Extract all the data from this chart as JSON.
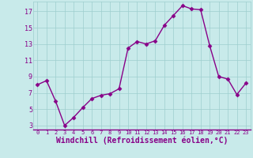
{
  "x": [
    0,
    1,
    2,
    3,
    4,
    5,
    6,
    7,
    8,
    9,
    10,
    11,
    12,
    13,
    14,
    15,
    16,
    17,
    18,
    19,
    20,
    21,
    22,
    23
  ],
  "y": [
    8.0,
    8.5,
    6.0,
    3.0,
    4.0,
    5.2,
    6.3,
    6.7,
    6.9,
    7.5,
    12.5,
    13.3,
    13.0,
    13.4,
    15.3,
    16.5,
    17.7,
    17.3,
    17.2,
    12.8,
    9.0,
    8.7,
    6.8,
    8.2
  ],
  "line_color": "#880088",
  "marker": "D",
  "markersize": 2.5,
  "linewidth": 1.0,
  "bg_color": "#c8eaea",
  "grid_color": "#9ecece",
  "xlabel": "Windchill (Refroidissement éolien,°C)",
  "tick_color": "#880088",
  "yticks": [
    3,
    5,
    7,
    9,
    11,
    13,
    15,
    17
  ],
  "xticks": [
    0,
    1,
    2,
    3,
    4,
    5,
    6,
    7,
    8,
    9,
    10,
    11,
    12,
    13,
    14,
    15,
    16,
    17,
    18,
    19,
    20,
    21,
    22,
    23
  ],
  "ylim": [
    2.5,
    18.2
  ],
  "xlim": [
    -0.5,
    23.5
  ],
  "spine_color": "#880088",
  "xlabel_fontsize": 7.0,
  "xtick_fontsize": 5.0,
  "ytick_fontsize": 6.0
}
